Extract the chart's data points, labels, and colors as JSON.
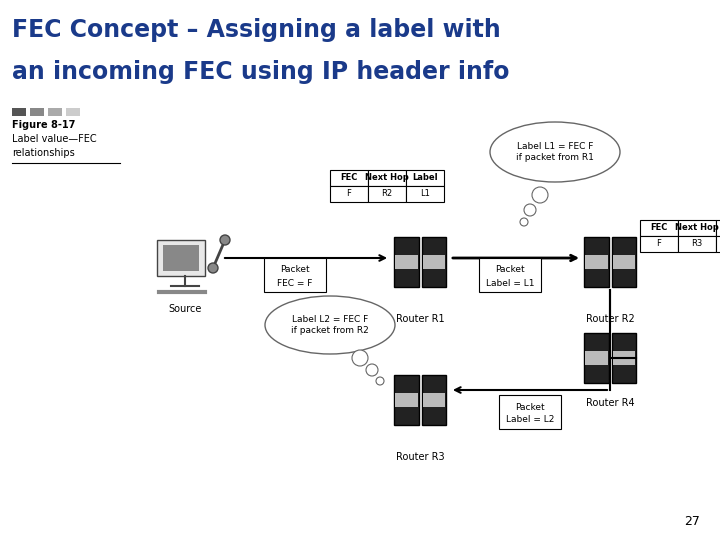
{
  "title_line1": "FEC Concept – Assigning a label with",
  "title_line2": "an incoming FEC using IP header info",
  "title_color": "#1a3a8a",
  "title_fontsize": 17,
  "bg_color": "#ffffff",
  "page_number": "27",
  "figure_label": "Figure 8-17",
  "figure_desc1": "Label value—FEC",
  "figure_desc2": "relationships",
  "bubble1_text": "Label L1 = FEC F\nif packet from R1",
  "bubble2_text": "Label L2 = FEC F\nif packet from R2"
}
